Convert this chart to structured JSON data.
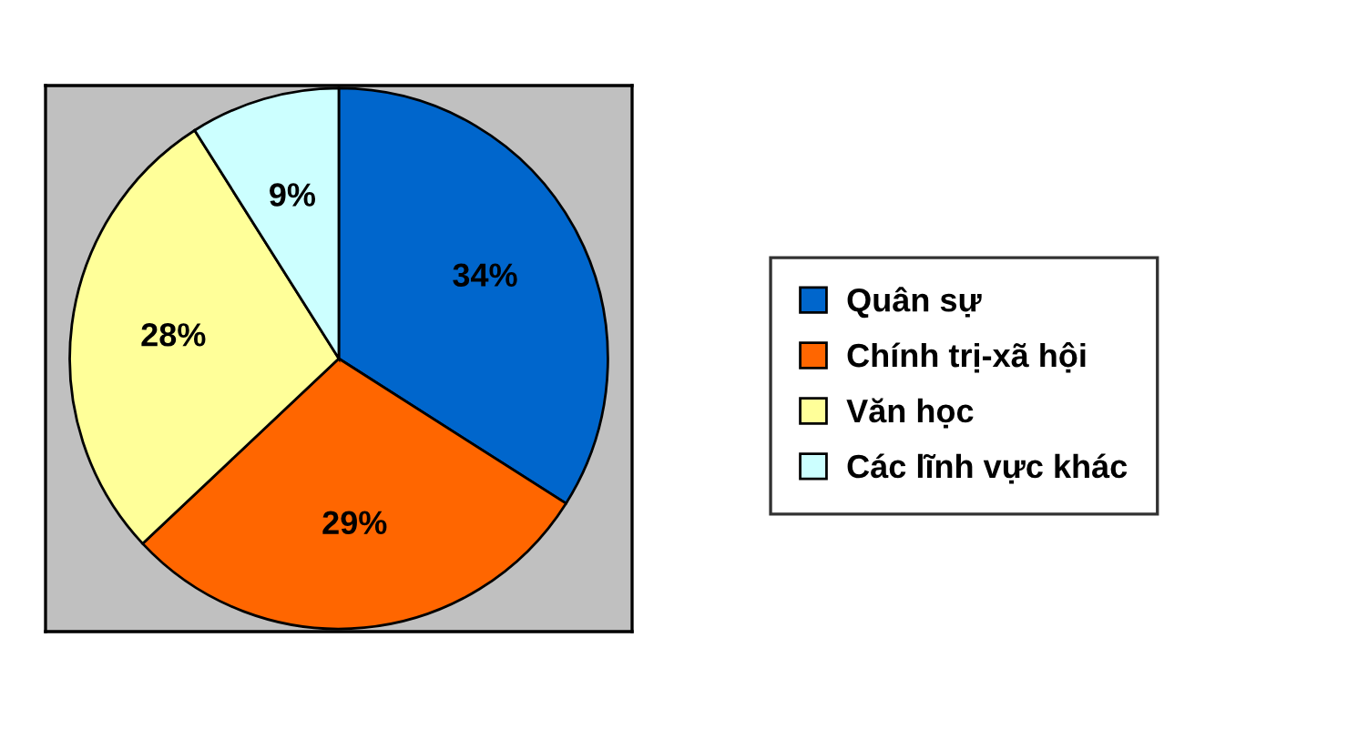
{
  "chart_data": {
    "type": "pie",
    "categories": [
      "Quân sự",
      "Chính trị-xã hội",
      "Văn học",
      "Các lĩnh vực khác"
    ],
    "values": [
      34,
      29,
      28,
      9
    ],
    "colors": [
      "#0066cc",
      "#ff6600",
      "#ffff99",
      "#ccffff"
    ],
    "value_labels": [
      "34%",
      "29%",
      "28%",
      "9%"
    ],
    "legend": "right"
  }
}
